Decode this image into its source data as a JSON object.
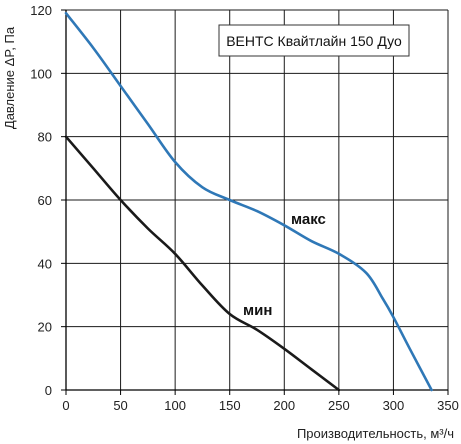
{
  "chart_data": {
    "type": "line",
    "title": "ВЕНТС Квайтлайн 150 Дуо",
    "xlabel": "Производительность, м³/ч",
    "ylabel": "Давление  ΔP, Па",
    "xlim": [
      0,
      350
    ],
    "ylim": [
      0,
      120
    ],
    "x_ticks": [
      0,
      50,
      100,
      150,
      200,
      250,
      300,
      350
    ],
    "y_ticks": [
      0,
      20,
      40,
      60,
      80,
      100,
      120
    ],
    "x_tick_labels": [
      "0",
      "50",
      "100",
      "150",
      "200",
      "250",
      "300",
      "350"
    ],
    "y_tick_labels": [
      "0",
      "20",
      "40",
      "60",
      "80",
      "100",
      "120"
    ],
    "grid": true,
    "series": [
      {
        "name": "макс",
        "color": "#2f78b7",
        "x": [
          0,
          25,
          50,
          75,
          100,
          125,
          150,
          175,
          200,
          225,
          250,
          275,
          290,
          300,
          315,
          335
        ],
        "y": [
          119,
          108,
          96,
          84,
          72,
          64,
          60,
          56.5,
          52,
          47,
          43,
          37,
          29,
          23,
          13,
          0
        ]
      },
      {
        "name": "мин",
        "color": "#1a1a1a",
        "x": [
          0,
          25,
          50,
          75,
          100,
          125,
          150,
          175,
          200,
          225,
          250
        ],
        "y": [
          80,
          70,
          60,
          51,
          43,
          33,
          24,
          19,
          13,
          6.5,
          0
        ]
      }
    ]
  }
}
